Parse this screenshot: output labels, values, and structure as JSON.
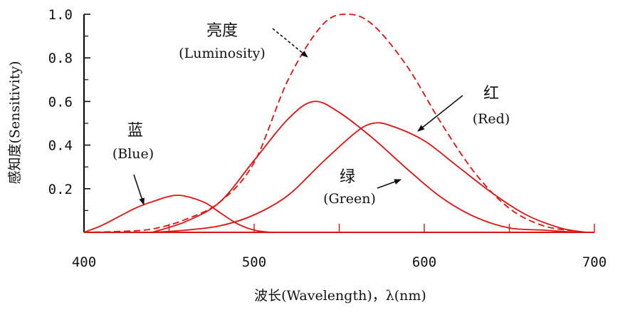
{
  "chart_data": {
    "type": "line",
    "xlabel": "波长(Wavelength)，λ(nm)",
    "ylabel": "感知度(Sensitivity)",
    "xlim": [
      400,
      700
    ],
    "ylim": [
      0,
      1.0
    ],
    "x_ticks": [
      "400",
      "500",
      "600",
      "700"
    ],
    "y_ticks": [
      "0.2",
      "0.4",
      "0.6",
      "0.8",
      "1.0"
    ],
    "grid": false,
    "legend": "none",
    "line_color": "#dd1111",
    "series": [
      {
        "name": "亮度 (Luminosity)",
        "style": "dashed",
        "x": [
          400,
          420,
          440,
          460,
          480,
          500,
          520,
          540,
          555,
          570,
          590,
          610,
          630,
          650,
          670,
          690
        ],
        "y": [
          0.0,
          0.004,
          0.015,
          0.06,
          0.14,
          0.32,
          0.7,
          0.95,
          1.0,
          0.95,
          0.76,
          0.5,
          0.27,
          0.11,
          0.03,
          0.005
        ]
      },
      {
        "name": "蓝 (Blue)",
        "style": "solid",
        "x": [
          400,
          410,
          420,
          430,
          440,
          455,
          470,
          480,
          490,
          500,
          510
        ],
        "y": [
          0.0,
          0.03,
          0.07,
          0.11,
          0.14,
          0.17,
          0.14,
          0.09,
          0.04,
          0.01,
          0.0
        ]
      },
      {
        "name": "绿 (Green)",
        "style": "solid",
        "x": [
          440,
          460,
          480,
          500,
          520,
          535,
          550,
          570,
          590,
          610,
          630,
          650,
          670,
          690
        ],
        "y": [
          0.0,
          0.05,
          0.14,
          0.33,
          0.52,
          0.6,
          0.55,
          0.43,
          0.29,
          0.16,
          0.07,
          0.02,
          0.01,
          0.0
        ]
      },
      {
        "name": "红 (Red)",
        "style": "solid",
        "x": [
          440,
          460,
          480,
          500,
          520,
          540,
          560,
          570,
          580,
          600,
          620,
          640,
          660,
          680,
          695
        ],
        "y": [
          0.0,
          0.01,
          0.03,
          0.08,
          0.17,
          0.32,
          0.46,
          0.5,
          0.49,
          0.42,
          0.3,
          0.18,
          0.08,
          0.02,
          0.0
        ]
      }
    ],
    "annotations": {
      "luminosity_cn": "亮度",
      "luminosity_en": "(Luminosity)",
      "blue_cn": "蓝",
      "blue_en": "(Blue)",
      "green_cn": "绿",
      "green_en": "(Green)",
      "red_cn": "红",
      "red_en": "(Red)"
    }
  }
}
